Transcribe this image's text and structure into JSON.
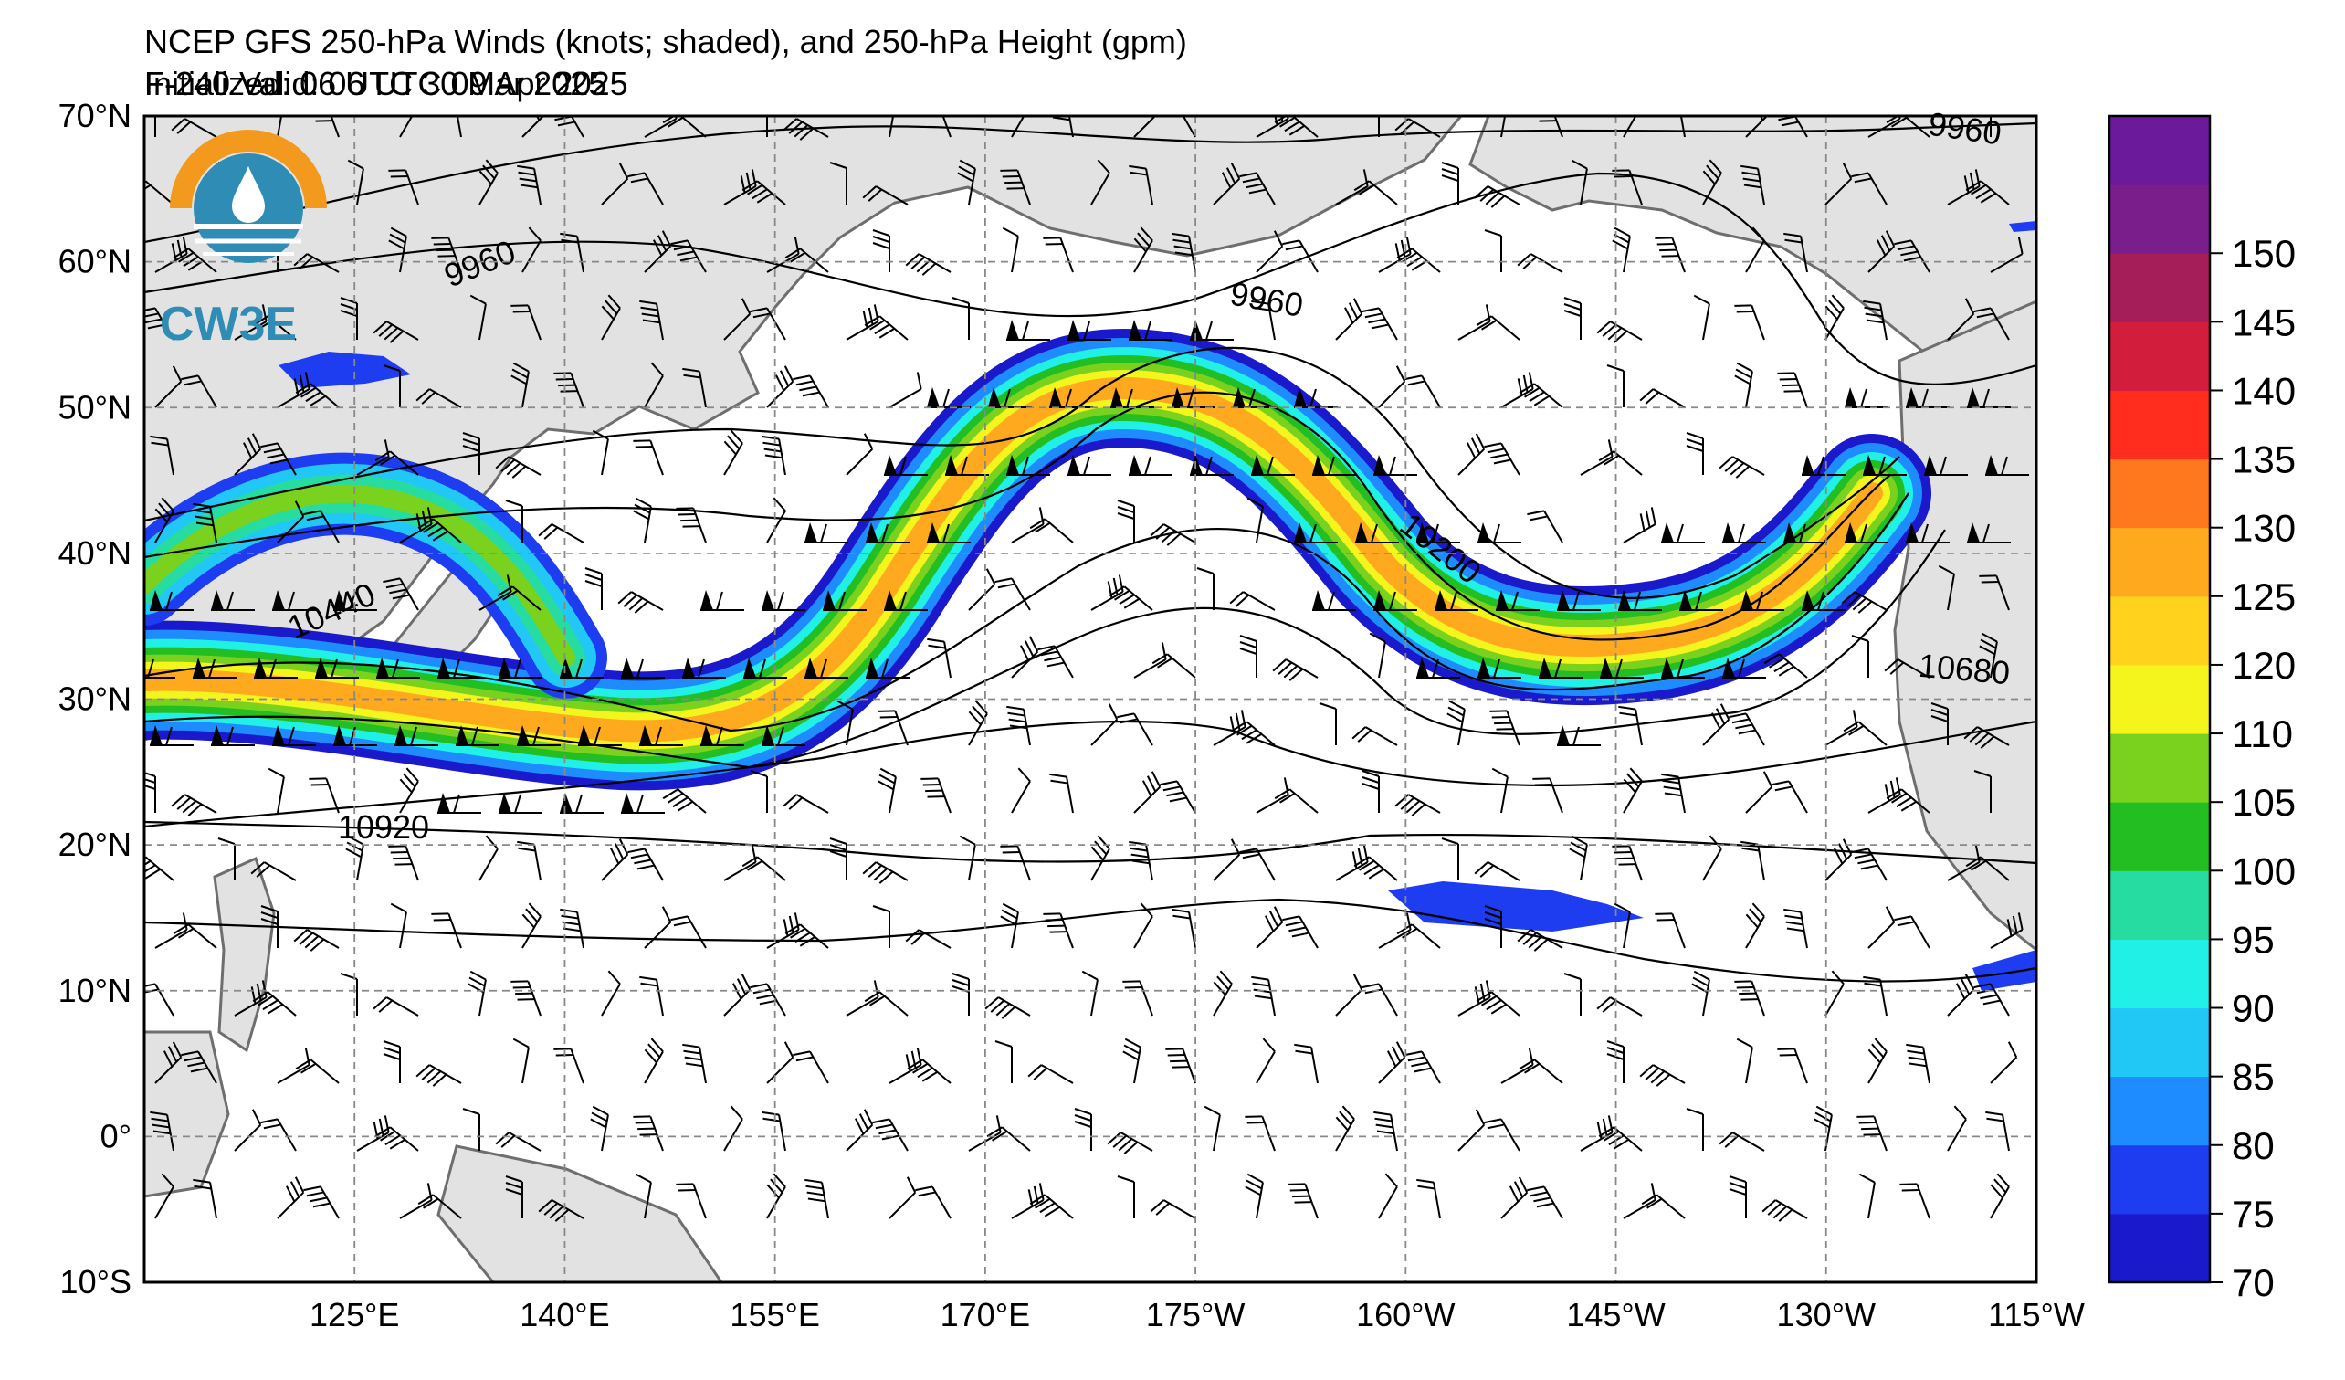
{
  "header": {
    "title": "NCEP GFS 250-hPa Winds (knots; shaded), and 250-hPa Height (gpm)",
    "init": "Initialized: 06 UTC 30 Mar 2025",
    "valid": "F-240  Valid: 06 UTC 09 Apr 2025"
  },
  "logo": {
    "text": "CW3E",
    "ring_color": "#f39a1e",
    "water_color": "#2f8db5"
  },
  "map": {
    "projection": "equirectangular",
    "lon_range": [
      110,
      245
    ],
    "lat_range": [
      -10,
      70
    ],
    "lat_labels": [
      "70°N",
      "60°N",
      "50°N",
      "40°N",
      "30°N",
      "20°N",
      "10°N",
      "0°",
      "10°S"
    ],
    "lon_labels": [
      "125°E",
      "140°E",
      "155°E",
      "170°E",
      "175°W",
      "160°W",
      "145°W",
      "130°W",
      "115°W"
    ],
    "land_color": "#e2e2e2",
    "coast_color": "#707070",
    "contour_labels": [
      "9960",
      "9960",
      "9960",
      "10200",
      "10440",
      "10680",
      "10920"
    ]
  },
  "colorbar": {
    "levels": [
      "70",
      "75",
      "80",
      "85",
      "90",
      "95",
      "100",
      "105",
      "110",
      "120",
      "125",
      "130",
      "135",
      "140",
      "145",
      "150"
    ],
    "colors": [
      "#1a1acc",
      "#1e3cf0",
      "#1e8cff",
      "#22c8f5",
      "#20f0e6",
      "#26dca0",
      "#22be22",
      "#7ad21e",
      "#f5f51e",
      "#ffd21e",
      "#ffaa1e",
      "#ff781e",
      "#ff2d1e",
      "#d21e3c",
      "#a51e5a",
      "#7a1e8c",
      "#6a1a9a"
    ]
  }
}
